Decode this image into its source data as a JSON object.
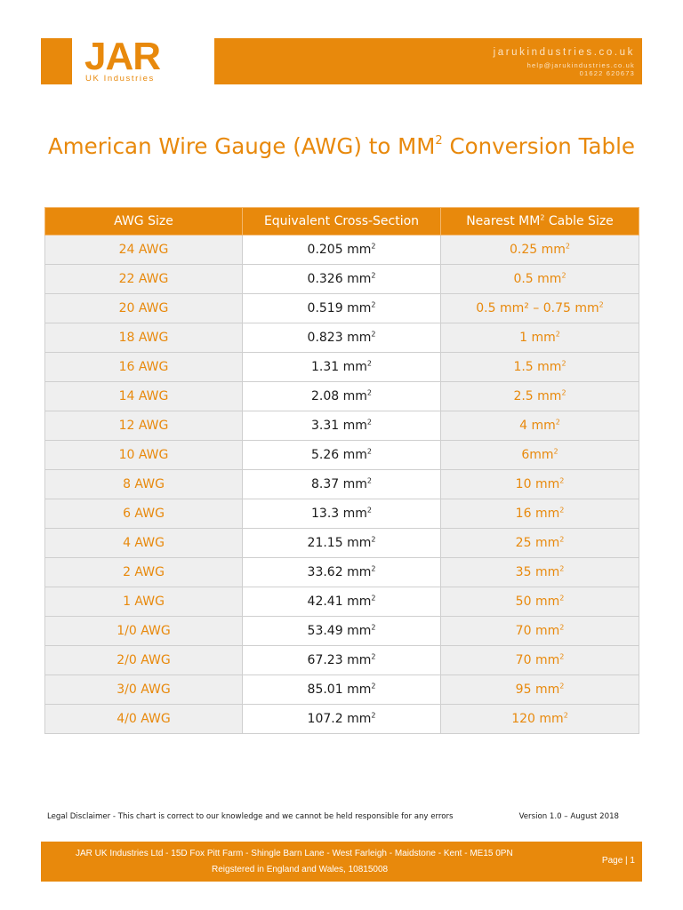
{
  "header": {
    "logo": "JAR",
    "logo_sub": "UK Industries",
    "website": "jarukindustries.co.uk",
    "email": "help@jarukindustries.co.uk",
    "phone": "01622 620673",
    "brand_color": "#e8890c"
  },
  "title": {
    "prefix": "American Wire Gauge (AWG) to MM",
    "sup": "2",
    "suffix": " Conversion Table"
  },
  "table": {
    "headers": {
      "awg": "AWG Size",
      "equivalent": "Equivalent Cross-Section",
      "cable_prefix": "Nearest MM",
      "cable_sup": "2",
      "cable_suffix": " Cable Size"
    },
    "unit": "mm",
    "unit_sup": "2",
    "rows": [
      {
        "awg": "24 AWG",
        "eq": "0.205",
        "cable": "0.25"
      },
      {
        "awg": "22 AWG",
        "eq": "0.326",
        "cable": "0.5"
      },
      {
        "awg": "20 AWG",
        "eq": "0.519",
        "cable": "0.5 mm² – 0.75"
      },
      {
        "awg": "18 AWG",
        "eq": "0.823",
        "cable": "1"
      },
      {
        "awg": "16 AWG",
        "eq": "1.31",
        "cable": "1.5"
      },
      {
        "awg": "14 AWG",
        "eq": "2.08",
        "cable": "2.5"
      },
      {
        "awg": "12 AWG",
        "eq": "3.31",
        "cable": "4"
      },
      {
        "awg": "10 AWG",
        "eq": "5.26",
        "cable": "6"
      },
      {
        "awg": "8 AWG",
        "eq": "8.37",
        "cable": "10"
      },
      {
        "awg": "6 AWG",
        "eq": "13.3",
        "cable": "16"
      },
      {
        "awg": "4 AWG",
        "eq": "21.15",
        "cable": "25"
      },
      {
        "awg": "2 AWG",
        "eq": "33.62",
        "cable": "35"
      },
      {
        "awg": "1 AWG",
        "eq": "42.41",
        "cable": "50"
      },
      {
        "awg": "1/0 AWG",
        "eq": "53.49",
        "cable": "70"
      },
      {
        "awg": "2/0 AWG",
        "eq": "67.23",
        "cable": "70"
      },
      {
        "awg": "3/0 AWG",
        "eq": "85.01",
        "cable": "95"
      },
      {
        "awg": "4/0 AWG",
        "eq": "107.2",
        "cable": "120"
      }
    ]
  },
  "disclaimer": "Legal Disclaimer - This chart is correct to our knowledge and we cannot be held responsible for any errors",
  "version": "Version 1.0 – August 2018",
  "footer": {
    "address": "JAR UK Industries Ltd - 15D Fox Pitt Farm - Shingle Barn Lane - West Farleigh - Maidstone - Kent - ME15 0PN",
    "registration": "Reigstered in England and Wales, 10815008",
    "page": "Page  |  1"
  }
}
